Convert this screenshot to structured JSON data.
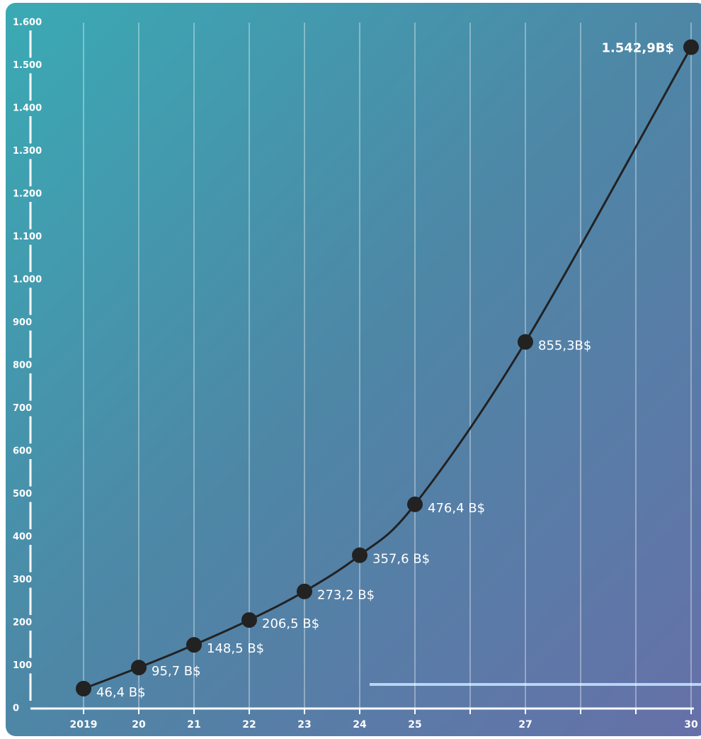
{
  "chart_data": {
    "type": "line",
    "x": [
      2019,
      2020,
      2021,
      2022,
      2023,
      2024,
      2025,
      2027,
      2030
    ],
    "series": [
      {
        "color": "#222222",
        "values": [
          46.4,
          95.7,
          148.5,
          206.5,
          273.2,
          357.6,
          476.4,
          855.3,
          1542.9
        ],
        "value_labels": [
          "46,4 B$",
          "95,7 B$",
          "148,5 B$",
          "206,5 B$",
          "273,2 B$",
          "357,6 B$",
          "476,4 B$",
          "855,3B$",
          "1.542,9B$"
        ]
      }
    ],
    "xlim": [
      2018,
      2030.2
    ],
    "xticks": [
      2019,
      {
        "value": 2020,
        "label": "20"
      },
      {
        "value": 2021,
        "label": "21"
      },
      {
        "value": 2022,
        "label": "22"
      },
      {
        "value": 2023,
        "label": "23"
      },
      {
        "value": 2024,
        "label": "24"
      },
      {
        "value": 2025,
        "label": "25"
      },
      {
        "value": 2026,
        "label": null
      },
      {
        "value": 2027,
        "label": "27"
      },
      {
        "value": 2028,
        "label": null
      },
      {
        "value": 2029,
        "label": null
      },
      {
        "value": 2030,
        "label": "30"
      }
    ],
    "ylim": [
      0,
      1600
    ],
    "yticks": [
      0,
      100,
      200,
      300,
      400,
      500,
      600,
      700,
      800,
      900,
      {
        "value": 1000,
        "label": "1.000"
      },
      {
        "value": 1100,
        "label": "1.100"
      },
      {
        "value": 1200,
        "label": "1.200"
      },
      {
        "value": 1300,
        "label": "1.300"
      },
      {
        "value": 1400,
        "label": "1.400"
      },
      {
        "value": 1500,
        "label": "1.500"
      },
      {
        "value": 1600,
        "label": "1.600"
      }
    ],
    "grid": true
  }
}
